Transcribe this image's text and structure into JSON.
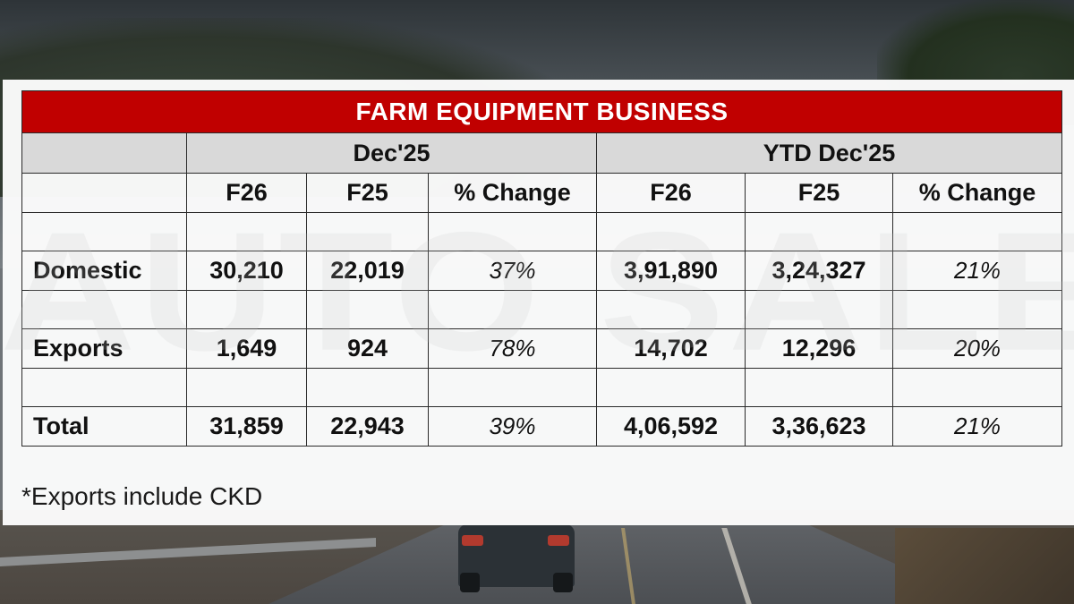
{
  "watermark": "AUTO SALES",
  "table": {
    "title": "FARM EQUIPMENT BUSINESS",
    "groups": [
      "Dec'25",
      "YTD Dec'25"
    ],
    "subheaders": [
      "F26",
      "F25",
      "% Change",
      "F26",
      "F25",
      "% Change"
    ],
    "rows": [
      {
        "label": "Domestic",
        "values": [
          "30,210",
          "22,019",
          "37%",
          "3,91,890",
          "3,24,327",
          "21%"
        ]
      },
      {
        "label": "Exports",
        "values": [
          "1,649",
          "924",
          "78%",
          "14,702",
          "12,296",
          "20%"
        ]
      },
      {
        "label": "Total",
        "values": [
          "31,859",
          "22,943",
          "39%",
          "4,06,592",
          "3,36,623",
          "21%"
        ]
      }
    ]
  },
  "footnote": "*Exports include CKD"
}
